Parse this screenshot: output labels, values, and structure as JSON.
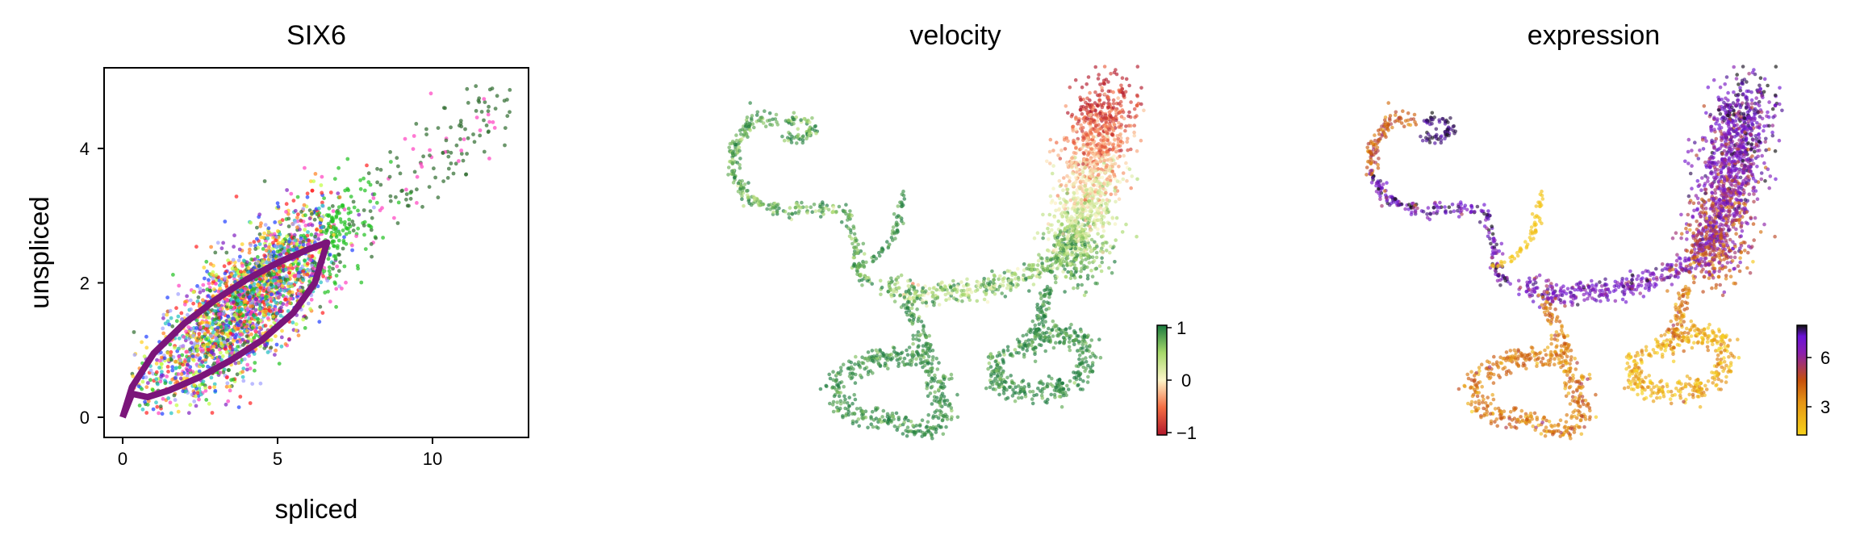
{
  "panels": {
    "phase": {
      "title": "SIX6"
    },
    "velocity": {
      "title": "velocity"
    },
    "expression": {
      "title": "expression"
    }
  },
  "chart_data": [
    {
      "type": "scatter",
      "title": "SIX6",
      "xlabel": "spliced",
      "ylabel": "unspliced",
      "xlim": [
        -0.6,
        13.1
      ],
      "ylim": [
        -0.3,
        5.2
      ],
      "xticks": [
        0,
        5,
        10
      ],
      "yticks": [
        0,
        2,
        4
      ],
      "point_colors": [
        "#ff1f1f",
        "#1f3fff",
        "#20c020",
        "#ff40c0",
        "#20c0c0",
        "#8020c0",
        "#ffd020",
        "#c0ff40",
        "#2e6b2e",
        "#ff8020",
        "#a0a0ff"
      ],
      "fit_curve": {
        "color": "#7b157a",
        "upper": [
          [
            0,
            0
          ],
          [
            0.3,
            0.45
          ],
          [
            1,
            0.95
          ],
          [
            2,
            1.4
          ],
          [
            3,
            1.75
          ],
          [
            4,
            2.05
          ],
          [
            5,
            2.3
          ],
          [
            6,
            2.5
          ],
          [
            6.6,
            2.6
          ]
        ],
        "lower": [
          [
            6.6,
            2.6
          ],
          [
            6.2,
            2.0
          ],
          [
            5.5,
            1.55
          ],
          [
            4.5,
            1.15
          ],
          [
            3.5,
            0.85
          ],
          [
            2.5,
            0.6
          ],
          [
            1.5,
            0.4
          ],
          [
            0.8,
            0.3
          ],
          [
            0.3,
            0.35
          ],
          [
            0,
            0
          ]
        ]
      },
      "grid": false
    },
    {
      "type": "scatter",
      "title": "velocity",
      "color_by": "velocity",
      "colormap": [
        "#b2182b",
        "#fdf5c8",
        "#1a7a3e"
      ],
      "colorbar": {
        "min": -1,
        "max": 1,
        "ticks": [
          "1",
          "0",
          "−1"
        ]
      }
    },
    {
      "type": "scatter",
      "title": "expression",
      "color_by": "expression",
      "colormap": [
        "#f7d21a",
        "#e59515",
        "#c6500c",
        "#8a1fb0",
        "#6a12d8",
        "#111111"
      ],
      "colorbar": {
        "min": 1,
        "max": 8,
        "ticks": [
          "6",
          "3"
        ]
      }
    }
  ]
}
